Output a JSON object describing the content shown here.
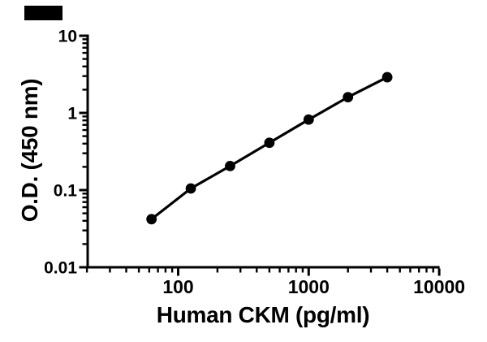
{
  "page": {
    "background": "#ffffff"
  },
  "redaction_box": {
    "color": "#000000"
  },
  "chart_data": {
    "type": "line",
    "subtype": "elisa-standard-curve",
    "title": "",
    "xlabel": "Human CKM (pg/ml)",
    "ylabel": "O.D. (450 nm)",
    "x_scale": "log",
    "y_scale": "log",
    "xlim": [
      20,
      10000
    ],
    "ylim": [
      0.01,
      10
    ],
    "x": [
      62.5,
      125,
      250,
      500,
      1000,
      2000,
      4000
    ],
    "y": [
      0.042,
      0.105,
      0.205,
      0.41,
      0.82,
      1.6,
      2.9
    ],
    "x_ticks": {
      "values": [
        100,
        1000,
        10000
      ],
      "labels": [
        "100",
        "1000",
        "10000"
      ]
    },
    "y_ticks": {
      "values": [
        10,
        1,
        0.1,
        0.01
      ],
      "labels": [
        "10",
        "1",
        "0.1",
        "0.01"
      ]
    },
    "grid": false,
    "legend": null,
    "marker": {
      "shape": "circle",
      "color": "#000000"
    },
    "line_color": "#000000",
    "axis_color": "#000000"
  }
}
